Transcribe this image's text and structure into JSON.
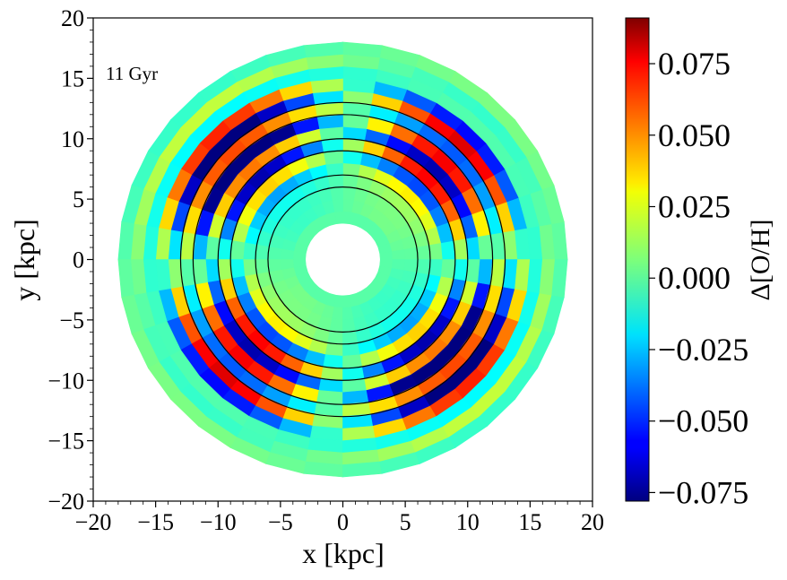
{
  "chart_data": {
    "type": "heatmap",
    "subtype": "polar-binned disk map",
    "annotation": "11 Gyr",
    "xlabel": "x [kpc]",
    "ylabel": "y [kpc]",
    "xlim": [
      -20,
      20
    ],
    "ylim": [
      -20,
      20
    ],
    "xticks": [
      "−20",
      "−15",
      "−10",
      "−5",
      "0",
      "5",
      "10",
      "15",
      "20"
    ],
    "yticks": [
      "20",
      "15",
      "10",
      "5",
      "0",
      "−5",
      "−10",
      "−15",
      "−20"
    ],
    "xtick_values": [
      -20,
      -15,
      -10,
      -5,
      0,
      5,
      10,
      15,
      20
    ],
    "ytick_values": [
      20,
      15,
      10,
      5,
      0,
      -5,
      -10,
      -15,
      -20
    ],
    "colorbar": {
      "label": "Δ[O/H]",
      "range": [
        -0.078,
        0.091
      ],
      "ticks": [
        "−0.075",
        "−0.050",
        "−0.025",
        "0.000",
        "0.025",
        "0.050",
        "0.075"
      ],
      "tick_values": [
        -0.075,
        -0.05,
        -0.025,
        0.0,
        0.025,
        0.05,
        0.075
      ],
      "colormap": "jet"
    },
    "disk": {
      "r_inner": 3,
      "r_outer": 18,
      "ring_width": 1,
      "n_azimuth_bins": 36
    },
    "ring_values_base": [
      0.0,
      0.0,
      0.0,
      0.0,
      0.0,
      -0.005,
      0.0,
      -0.01,
      -0.012,
      0.008,
      -0.005,
      0.004,
      -0.008,
      0.006,
      0.0
    ],
    "ring_amplitudes": [
      0.0,
      0.005,
      0.006,
      0.012,
      0.03,
      -0.04,
      0.07,
      -0.06,
      0.083,
      -0.05,
      0.08,
      -0.06,
      0.007,
      -0.012,
      0.006
    ],
    "pattern_phase_deg": 45,
    "contour_circles_kpc": [
      6,
      7,
      9,
      10,
      12,
      13
    ]
  }
}
